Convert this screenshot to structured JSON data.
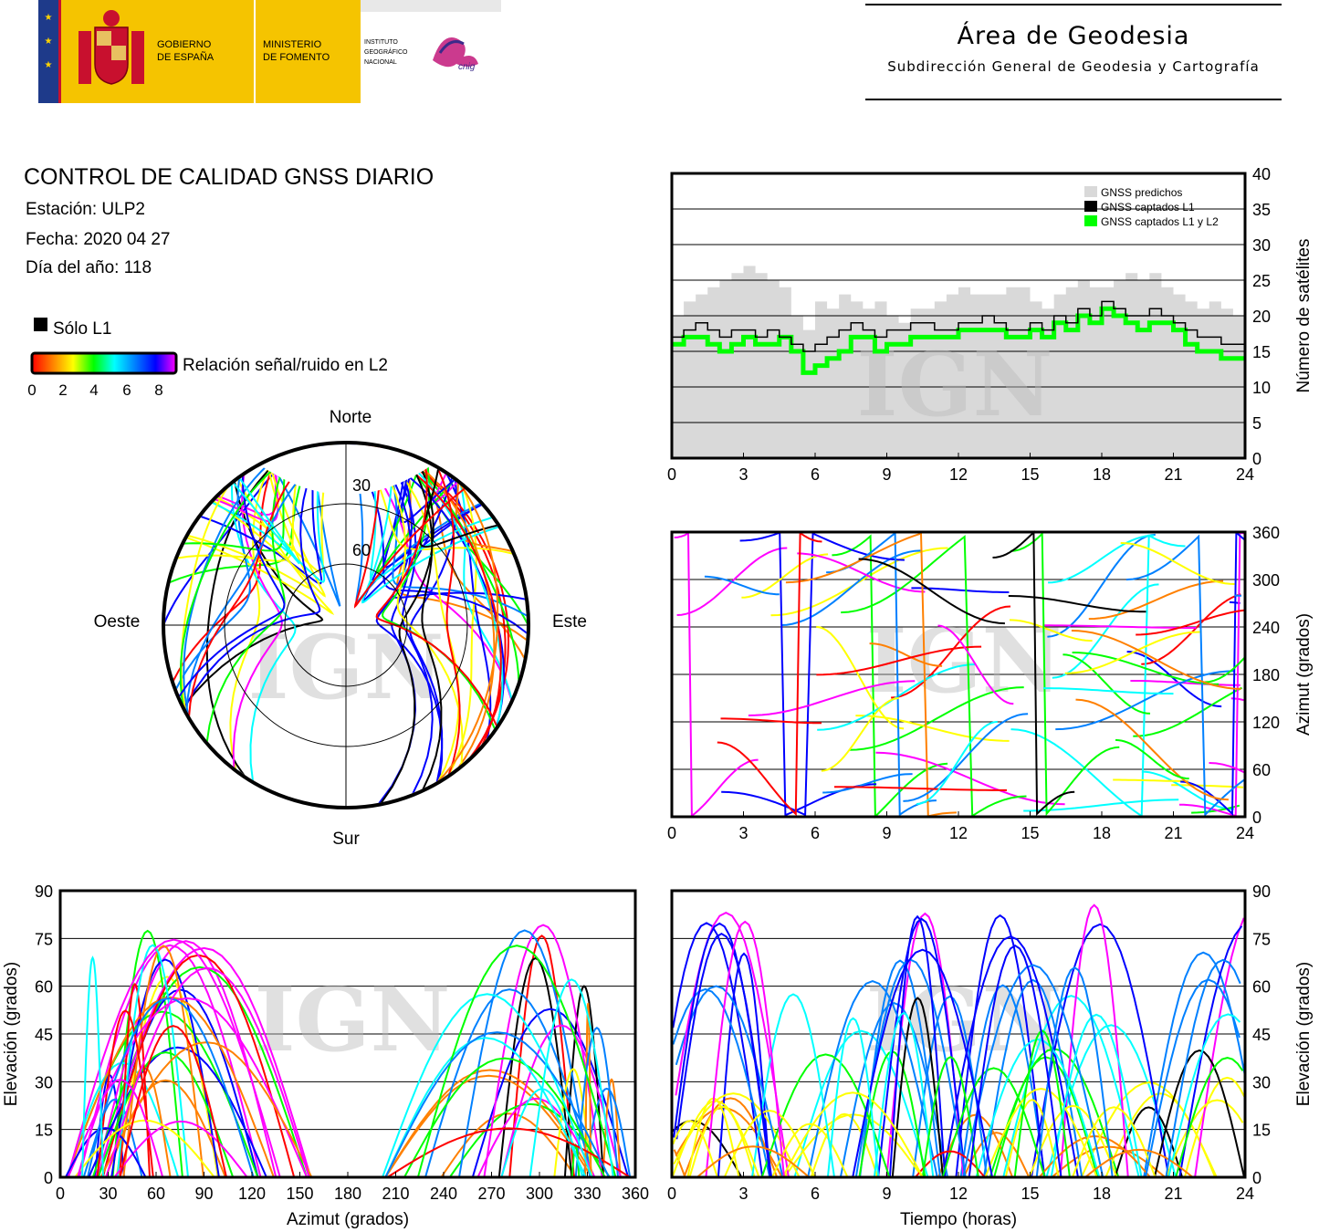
{
  "header": {
    "gov_line1": "GOBIERNO",
    "gov_line2": "DE ESPAÑA",
    "min_line1": "MINISTERIO",
    "min_line2": "DE FOMENTO",
    "ign_line1": "INSTITUTO",
    "ign_line2": "GEOGRÁFICO",
    "ign_line3": "NACIONAL",
    "cnig": "cnig",
    "area_title": "Área de Geodesia",
    "area_subtitle": "Subdirección General de Geodesia y Cartografía"
  },
  "report": {
    "title": "CONTROL DE CALIDAD GNSS DIARIO",
    "station": "Estación: ULP2",
    "date": "Fecha: 2020 04 27",
    "doy": "Día del año: 118"
  },
  "legend": {
    "l1_only": "Sólo L1",
    "snr_label": "Relación señal/ruido en L2",
    "snr_ticks": [
      "0",
      "2",
      "4",
      "6",
      "8"
    ],
    "snr_colors": [
      "#ff0000",
      "#ff8000",
      "#ffff00",
      "#00ff00",
      "#00ffff",
      "#0080ff",
      "#0000ff",
      "#ff00ff"
    ]
  },
  "watermark": "IGN",
  "chart_data": [
    {
      "id": "polar",
      "type": "scatter",
      "title": "",
      "labels": {
        "north": "Norte",
        "south": "Sur",
        "east": "Este",
        "west": "Oeste"
      },
      "rings": [
        "30",
        "60"
      ],
      "rlim": [
        0,
        90
      ]
    },
    {
      "id": "satcount",
      "type": "area",
      "xlabel": "",
      "ylabel": "Número de satélites",
      "xlim": [
        0,
        24
      ],
      "ylim": [
        0,
        40
      ],
      "x_ticks": [
        "0",
        "3",
        "6",
        "9",
        "12",
        "15",
        "18",
        "21",
        "24"
      ],
      "y_ticks": [
        "0",
        "5",
        "10",
        "15",
        "20",
        "25",
        "30",
        "35",
        "40"
      ],
      "series": [
        {
          "name": "GNSS predichos",
          "color": "#d9d9d9",
          "x": [
            0,
            0.5,
            1,
            1.5,
            2,
            2.5,
            3,
            3.5,
            4,
            4.5,
            5,
            5.5,
            6,
            6.5,
            7,
            7.5,
            8,
            8.5,
            9,
            9.5,
            10,
            10.5,
            11,
            11.5,
            12,
            12.5,
            13,
            13.5,
            14,
            14.5,
            15,
            15.5,
            16,
            16.5,
            17,
            17.5,
            18,
            18.5,
            19,
            19.5,
            20,
            20.5,
            21,
            21.5,
            22,
            22.5,
            23,
            23.5,
            24
          ],
          "values": [
            20,
            22,
            23,
            24,
            25,
            26,
            27,
            26,
            25,
            24,
            20,
            18,
            22,
            21,
            23,
            22,
            21,
            22,
            20,
            19,
            21,
            21,
            22,
            23,
            24,
            23,
            23,
            23,
            24,
            24,
            22,
            21,
            23,
            24,
            25,
            24,
            24,
            25,
            26,
            25,
            26,
            24,
            23,
            22,
            21,
            22,
            21,
            20,
            20
          ]
        },
        {
          "name": "GNSS captados L1",
          "color": "#000000",
          "x": [
            0,
            0.5,
            1,
            1.5,
            2,
            2.5,
            3,
            3.5,
            4,
            4.5,
            5,
            5.5,
            6,
            6.5,
            7,
            7.5,
            8,
            8.5,
            9,
            9.5,
            10,
            10.5,
            11,
            11.5,
            12,
            12.5,
            13,
            13.5,
            14,
            14.5,
            15,
            15.5,
            16,
            16.5,
            17,
            17.5,
            18,
            18.5,
            19,
            19.5,
            20,
            20.5,
            21,
            21.5,
            22,
            22.5,
            23,
            23.5,
            24
          ],
          "values": [
            17,
            18,
            19,
            18,
            17,
            18,
            18,
            17,
            18,
            17,
            16,
            15,
            16,
            17,
            18,
            19,
            18,
            17,
            18,
            18,
            19,
            19,
            18,
            18,
            19,
            19,
            20,
            19,
            18,
            18,
            19,
            18,
            20,
            19,
            21,
            20,
            22,
            21,
            20,
            20,
            21,
            20,
            19,
            18,
            17,
            17,
            16,
            16,
            16
          ]
        },
        {
          "name": "GNSS captados L1 y L2",
          "color": "#00ff00",
          "x": [
            0,
            0.5,
            1,
            1.5,
            2,
            2.5,
            3,
            3.5,
            4,
            4.5,
            5,
            5.5,
            6,
            6.5,
            7,
            7.5,
            8,
            8.5,
            9,
            9.5,
            10,
            10.5,
            11,
            11.5,
            12,
            12.5,
            13,
            13.5,
            14,
            14.5,
            15,
            15.5,
            16,
            16.5,
            17,
            17.5,
            18,
            18.5,
            19,
            19.5,
            20,
            20.5,
            21,
            21.5,
            22,
            22.5,
            23,
            23.5,
            24
          ],
          "values": [
            16,
            17,
            17,
            16,
            15,
            16,
            17,
            16,
            16,
            17,
            15,
            12,
            13,
            14,
            15,
            17,
            17,
            15,
            16,
            16,
            17,
            17,
            17,
            17,
            18,
            18,
            18,
            18,
            17,
            17,
            18,
            17,
            19,
            18,
            20,
            19,
            21,
            20,
            19,
            18,
            19,
            19,
            18,
            16,
            15,
            15,
            14,
            14,
            14
          ]
        }
      ]
    },
    {
      "id": "azimuth-time",
      "type": "scatter",
      "ylabel": "Azimut (grados)",
      "xlim": [
        0,
        24
      ],
      "ylim": [
        0,
        360
      ],
      "x_ticks": [
        "0",
        "3",
        "6",
        "9",
        "12",
        "15",
        "18",
        "21",
        "24"
      ],
      "y_ticks": [
        "0",
        "60",
        "120",
        "180",
        "240",
        "300",
        "360"
      ]
    },
    {
      "id": "elev-azimuth",
      "type": "scatter",
      "xlabel": "Azimut (grados)",
      "ylabel": "Elevación (grados)",
      "xlim": [
        0,
        360
      ],
      "ylim": [
        0,
        90
      ],
      "x_ticks": [
        "0",
        "30",
        "60",
        "90",
        "120",
        "150",
        "180",
        "210",
        "240",
        "270",
        "300",
        "330",
        "360"
      ],
      "y_ticks": [
        "0",
        "15",
        "30",
        "45",
        "60",
        "75",
        "90"
      ]
    },
    {
      "id": "elev-time",
      "type": "scatter",
      "xlabel": "Tiempo (horas)",
      "ylabel": "Elevación (grados)",
      "xlim": [
        0,
        24
      ],
      "ylim": [
        0,
        90
      ],
      "x_ticks": [
        "0",
        "3",
        "6",
        "9",
        "12",
        "15",
        "18",
        "21",
        "24"
      ],
      "y_ticks": [
        "0",
        "15",
        "30",
        "45",
        "60",
        "75",
        "90"
      ]
    }
  ]
}
